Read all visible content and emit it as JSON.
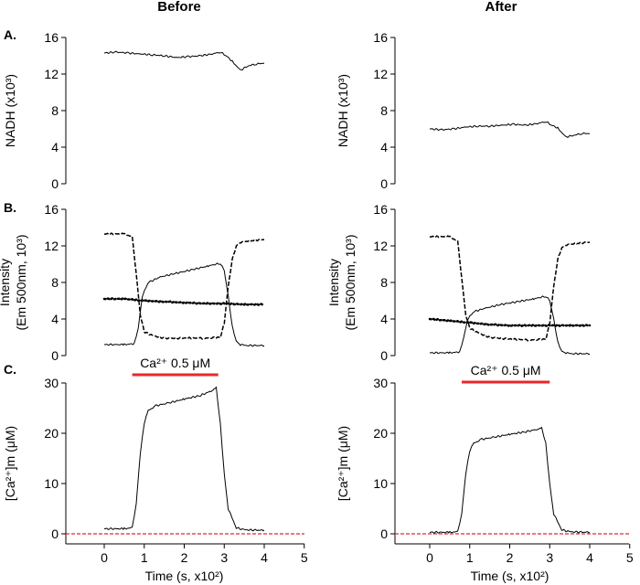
{
  "columns": [
    "Before",
    "After"
  ],
  "chart_data": [
    {
      "type": "line",
      "id": "A-before",
      "panel_label": "A.",
      "ylabel": "NADH (x10³)",
      "ylim": [
        0,
        16
      ],
      "yticks": [
        0,
        4,
        8,
        12,
        16
      ],
      "xlim": [
        0,
        4
      ],
      "series": [
        {
          "style": "solid",
          "x": [
            0,
            0.3,
            0.6,
            0.9,
            1.2,
            1.5,
            1.8,
            2.1,
            2.4,
            2.7,
            2.9,
            3.05,
            3.2,
            3.4,
            3.6,
            3.8,
            4.0
          ],
          "y": [
            14.3,
            14.4,
            14.3,
            14.2,
            14.1,
            14.0,
            13.8,
            13.9,
            14.0,
            14.2,
            14.4,
            14.0,
            13.4,
            12.4,
            12.9,
            13.1,
            13.2
          ]
        }
      ]
    },
    {
      "type": "line",
      "id": "A-after",
      "panel_label": "",
      "ylabel": "NADH (x10³)",
      "ylim": [
        0,
        16
      ],
      "yticks": [
        0,
        4,
        8,
        12,
        16
      ],
      "xlim": [
        0,
        4
      ],
      "series": [
        {
          "style": "solid",
          "x": [
            0,
            0.3,
            0.6,
            0.9,
            1.2,
            1.5,
            1.8,
            2.1,
            2.4,
            2.7,
            2.9,
            3.05,
            3.2,
            3.4,
            3.6,
            3.8,
            4.0
          ],
          "y": [
            6.0,
            5.9,
            6.0,
            6.2,
            6.3,
            6.3,
            6.4,
            6.5,
            6.4,
            6.6,
            6.8,
            6.4,
            6.1,
            5.1,
            5.3,
            5.5,
            5.5
          ]
        }
      ]
    },
    {
      "type": "line",
      "id": "B-before",
      "panel_label": "B.",
      "ylabel": "Intensity",
      "ylabel2": "(Em 500nm, 10³)",
      "ylim": [
        0,
        16
      ],
      "yticks": [
        0,
        4,
        8,
        12,
        16
      ],
      "xlim": [
        0,
        4
      ],
      "series": [
        {
          "style": "solid",
          "x": [
            0,
            0.5,
            0.75,
            0.85,
            0.95,
            1.1,
            1.4,
            1.8,
            2.2,
            2.6,
            2.9,
            3.0,
            3.1,
            3.2,
            3.3,
            3.4,
            3.6,
            4.0
          ],
          "y": [
            1.2,
            1.2,
            1.3,
            3.0,
            6.5,
            8.0,
            8.6,
            9.0,
            9.4,
            9.8,
            10.1,
            9.3,
            6.5,
            3.2,
            1.6,
            1.2,
            1.1,
            1.1
          ]
        },
        {
          "style": "dashed",
          "x": [
            0,
            0.5,
            0.7,
            0.8,
            0.9,
            1.0,
            1.2,
            1.5,
            2.0,
            2.5,
            2.9,
            3.0,
            3.1,
            3.2,
            3.3,
            3.4,
            3.7,
            4.0
          ],
          "y": [
            13.3,
            13.3,
            13.0,
            9.0,
            4.5,
            2.6,
            2.2,
            1.9,
            1.9,
            1.9,
            2.0,
            3.5,
            7.5,
            10.5,
            12.0,
            12.4,
            12.6,
            12.7
          ]
        },
        {
          "style": "dotted",
          "x": [
            0,
            0.5,
            1.0,
            1.5,
            2.0,
            2.5,
            3.0,
            3.5,
            4.0
          ],
          "y": [
            6.2,
            6.2,
            6.0,
            5.9,
            5.8,
            5.7,
            5.7,
            5.6,
            5.6
          ]
        }
      ]
    },
    {
      "type": "line",
      "id": "B-after",
      "panel_label": "",
      "ylabel": "Intensity",
      "ylabel2": "(Em 500nm, 10³)",
      "ylim": [
        0,
        16
      ],
      "yticks": [
        0,
        4,
        8,
        12,
        16
      ],
      "xlim": [
        0,
        4
      ],
      "series": [
        {
          "style": "solid",
          "x": [
            0,
            0.5,
            0.75,
            0.85,
            0.95,
            1.1,
            1.4,
            1.8,
            2.2,
            2.6,
            2.9,
            3.0,
            3.1,
            3.2,
            3.3,
            3.4,
            3.6,
            4.0
          ],
          "y": [
            0.3,
            0.3,
            0.4,
            2.0,
            4.0,
            4.8,
            5.2,
            5.6,
            5.9,
            6.2,
            6.5,
            6.0,
            4.0,
            1.5,
            0.5,
            0.3,
            0.2,
            0.2
          ]
        },
        {
          "style": "dashed",
          "x": [
            0,
            0.5,
            0.7,
            0.8,
            0.9,
            1.0,
            1.2,
            1.5,
            2.0,
            2.5,
            2.9,
            3.0,
            3.1,
            3.2,
            3.3,
            3.4,
            3.7,
            4.0
          ],
          "y": [
            13.0,
            13.0,
            12.5,
            8.5,
            4.5,
            3.0,
            2.5,
            2.0,
            1.8,
            1.7,
            1.8,
            3.5,
            7.5,
            10.5,
            11.8,
            12.1,
            12.3,
            12.4
          ]
        },
        {
          "style": "dotted",
          "x": [
            0,
            0.5,
            1.0,
            1.5,
            2.0,
            2.5,
            3.0,
            3.5,
            4.0
          ],
          "y": [
            4.0,
            3.8,
            3.6,
            3.4,
            3.3,
            3.3,
            3.3,
            3.3,
            3.3
          ]
        }
      ]
    },
    {
      "type": "line",
      "id": "C-before",
      "panel_label": "C.",
      "ylabel": "[Ca²⁺]m (μM)",
      "ylim": [
        -2,
        30
      ],
      "yticks": [
        0,
        10,
        20,
        30
      ],
      "xlim": [
        -0.9,
        5
      ],
      "xticks": [
        0,
        1,
        2,
        3,
        4,
        5
      ],
      "xlabel": "Time (s, x10²)",
      "zero_line": 0,
      "bar_label": "Ca²⁺ 0.5 μM",
      "bar_range": [
        0.7,
        2.85
      ],
      "series": [
        {
          "style": "solid",
          "x": [
            0,
            0.5,
            0.7,
            0.8,
            0.9,
            1.0,
            1.1,
            1.3,
            1.6,
            2.0,
            2.4,
            2.7,
            2.8,
            2.9,
            3.0,
            3.1,
            3.3,
            3.5,
            4.0
          ],
          "y": [
            1.0,
            1.0,
            1.2,
            6.0,
            16.0,
            22.0,
            24.5,
            25.5,
            26.0,
            26.8,
            27.5,
            28.5,
            29.0,
            22.0,
            12.0,
            5.0,
            1.2,
            0.8,
            0.7
          ]
        }
      ]
    },
    {
      "type": "line",
      "id": "C-after",
      "panel_label": "",
      "ylabel": "[Ca²⁺]m (μM)",
      "ylim": [
        -2,
        30
      ],
      "yticks": [
        0,
        10,
        20,
        30
      ],
      "xlim": [
        -0.9,
        5
      ],
      "xticks": [
        0,
        1,
        2,
        3,
        4,
        5
      ],
      "xlabel": "Time (s, x10²)",
      "zero_line": 0,
      "bar_label": "Ca²⁺ 0.5 μM",
      "bar_range": [
        0.8,
        3.0
      ],
      "series": [
        {
          "style": "solid",
          "x": [
            0,
            0.5,
            0.7,
            0.8,
            0.9,
            1.0,
            1.1,
            1.3,
            1.6,
            2.0,
            2.4,
            2.7,
            2.8,
            2.9,
            3.0,
            3.1,
            3.3,
            3.5,
            4.0
          ],
          "y": [
            0.3,
            0.3,
            0.4,
            4.0,
            12.0,
            16.5,
            18.0,
            18.8,
            19.2,
            19.8,
            20.3,
            20.8,
            21.0,
            18.0,
            10.0,
            4.0,
            0.8,
            0.4,
            0.3
          ]
        }
      ]
    }
  ],
  "colors": {
    "line": "#000000",
    "stim_bar": "#e8262b",
    "zero_line": "#e8262b"
  }
}
